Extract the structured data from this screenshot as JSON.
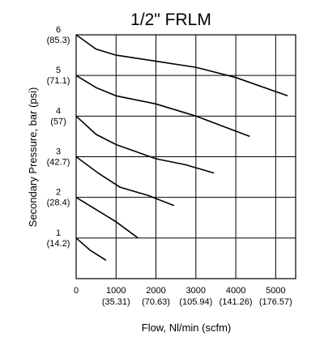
{
  "chart_data": {
    "type": "line",
    "title": "1/2\" FRLM",
    "xlabel": "Flow, Nl/min (scfm)",
    "ylabel": "Secondary Pressure, bar (psi)",
    "xlim": [
      0,
      5500
    ],
    "ylim": [
      0,
      6
    ],
    "grid": true,
    "x_ticks": [
      {
        "value": 0,
        "label": "0",
        "sub": ""
      },
      {
        "value": 1000,
        "label": "1000",
        "sub": "(35.31)"
      },
      {
        "value": 2000,
        "label": "2000",
        "sub": "(70.63)"
      },
      {
        "value": 3000,
        "label": "3000",
        "sub": "(105.94)"
      },
      {
        "value": 4000,
        "label": "4000",
        "sub": "(141.26)"
      },
      {
        "value": 5000,
        "label": "5000",
        "sub": "(176.57)"
      }
    ],
    "y_ticks": [
      {
        "value": 1,
        "label": "1",
        "sub": "(14.2)"
      },
      {
        "value": 2,
        "label": "2",
        "sub": "(28.4)"
      },
      {
        "value": 3,
        "label": "3",
        "sub": "(42.7)"
      },
      {
        "value": 4,
        "label": "4",
        "sub": "(57)"
      },
      {
        "value": 5,
        "label": "5",
        "sub": "(71.1)"
      },
      {
        "value": 6,
        "label": "6",
        "sub": "(85.3)"
      }
    ],
    "series": [
      {
        "points": [
          [
            0,
            1.0
          ],
          [
            350,
            0.7
          ],
          [
            750,
            0.45
          ]
        ]
      },
      {
        "points": [
          [
            0,
            2.0
          ],
          [
            500,
            1.7
          ],
          [
            1000,
            1.4
          ],
          [
            1550,
            1.0
          ]
        ]
      },
      {
        "points": [
          [
            0,
            3.0
          ],
          [
            550,
            2.6
          ],
          [
            1100,
            2.25
          ],
          [
            1800,
            2.05
          ],
          [
            2450,
            1.8
          ]
        ]
      },
      {
        "points": [
          [
            0,
            4.0
          ],
          [
            500,
            3.55
          ],
          [
            1000,
            3.3
          ],
          [
            2000,
            2.95
          ],
          [
            2750,
            2.8
          ],
          [
            3450,
            2.6
          ]
        ]
      },
      {
        "points": [
          [
            0,
            5.0
          ],
          [
            500,
            4.7
          ],
          [
            1000,
            4.5
          ],
          [
            2000,
            4.3
          ],
          [
            3000,
            4.0
          ],
          [
            4350,
            3.5
          ]
        ]
      },
      {
        "points": [
          [
            0,
            6.0
          ],
          [
            500,
            5.65
          ],
          [
            1000,
            5.5
          ],
          [
            2000,
            5.35
          ],
          [
            3000,
            5.2
          ],
          [
            4000,
            4.95
          ],
          [
            5300,
            4.5
          ]
        ]
      }
    ]
  }
}
